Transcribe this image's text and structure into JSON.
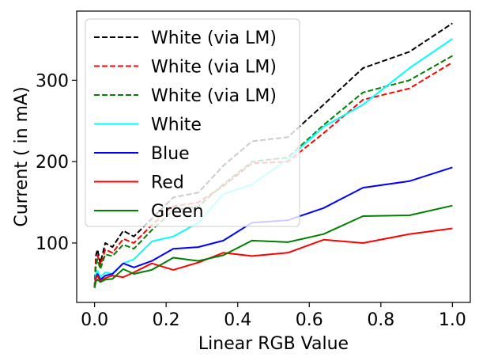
{
  "chart_data": {
    "type": "line",
    "title": "",
    "xlabel": "Linear RGB Value",
    "ylabel": "Current ( in mA)",
    "xlim": [
      -0.05,
      1.05
    ],
    "ylim": [
      27,
      385
    ],
    "x_ticks": [
      0.0,
      0.2,
      0.4,
      0.6,
      0.8,
      1.0
    ],
    "x_tick_labels": [
      "0.0",
      "0.2",
      "0.4",
      "0.6",
      "0.8",
      "1.0"
    ],
    "y_ticks": [
      100,
      200,
      300
    ],
    "y_tick_labels": [
      "100",
      "200",
      "300"
    ],
    "grid": false,
    "legend_position": "upper-left",
    "series": [
      {
        "name": "White (via LM)",
        "color": "#000000",
        "dash": "dashed",
        "x": [
          0.0,
          0.004,
          0.008,
          0.016,
          0.03,
          0.05,
          0.08,
          0.11,
          0.16,
          0.22,
          0.29,
          0.36,
          0.44,
          0.54,
          0.64,
          0.75,
          0.88,
          1.0
        ],
        "y": [
          45,
          85,
          92,
          75,
          100,
          95,
          115,
          108,
          130,
          156,
          162,
          195,
          225,
          230,
          270,
          315,
          335,
          370
        ]
      },
      {
        "name": "White (via LM)",
        "color": "#ff0000",
        "dash": "dashed",
        "x": [
          0.0,
          0.004,
          0.008,
          0.016,
          0.03,
          0.05,
          0.08,
          0.11,
          0.16,
          0.22,
          0.29,
          0.36,
          0.44,
          0.54,
          0.64,
          0.75,
          0.88,
          1.0
        ],
        "y": [
          45,
          78,
          85,
          72,
          92,
          88,
          105,
          100,
          122,
          145,
          150,
          170,
          198,
          200,
          235,
          276,
          290,
          322
        ]
      },
      {
        "name": "White (via LM)",
        "color": "#008000",
        "dash": "dashed",
        "x": [
          0.0,
          0.004,
          0.008,
          0.016,
          0.03,
          0.05,
          0.08,
          0.11,
          0.16,
          0.22,
          0.29,
          0.36,
          0.44,
          0.54,
          0.64,
          0.75,
          0.88,
          1.0
        ],
        "y": [
          45,
          72,
          80,
          68,
          86,
          84,
          98,
          93,
          116,
          140,
          145,
          172,
          200,
          205,
          245,
          285,
          300,
          330
        ]
      },
      {
        "name": "White",
        "color": "#00ffff",
        "dash": "solid",
        "x": [
          0.0,
          0.004,
          0.008,
          0.016,
          0.03,
          0.05,
          0.08,
          0.11,
          0.16,
          0.22,
          0.29,
          0.36,
          0.44,
          0.54,
          0.64,
          0.75,
          0.88,
          1.0
        ],
        "y": [
          45,
          62,
          66,
          58,
          64,
          62,
          75,
          80,
          102,
          108,
          125,
          160,
          172,
          203,
          243,
          270,
          315,
          351
        ]
      },
      {
        "name": "Blue",
        "color": "#0000ff",
        "dash": "solid",
        "x": [
          0.0,
          0.004,
          0.008,
          0.016,
          0.03,
          0.05,
          0.08,
          0.11,
          0.16,
          0.22,
          0.29,
          0.36,
          0.44,
          0.54,
          0.64,
          0.75,
          0.88,
          1.0
        ],
        "y": [
          45,
          58,
          62,
          55,
          60,
          62,
          75,
          70,
          78,
          93,
          95,
          103,
          125,
          128,
          143,
          168,
          176,
          193
        ]
      },
      {
        "name": "Red",
        "color": "#ff0000",
        "dash": "solid",
        "x": [
          0.0,
          0.004,
          0.008,
          0.016,
          0.03,
          0.05,
          0.08,
          0.11,
          0.16,
          0.22,
          0.29,
          0.36,
          0.44,
          0.54,
          0.64,
          0.75,
          0.88,
          1.0
        ],
        "y": [
          45,
          57,
          60,
          53,
          57,
          60,
          58,
          64,
          75,
          67,
          76,
          88,
          84,
          88,
          104,
          100,
          111,
          118
        ]
      },
      {
        "name": "Green",
        "color": "#008000",
        "dash": "solid",
        "x": [
          0.0,
          0.004,
          0.008,
          0.016,
          0.03,
          0.05,
          0.08,
          0.11,
          0.16,
          0.22,
          0.29,
          0.36,
          0.44,
          0.54,
          0.64,
          0.75,
          0.88,
          1.0
        ],
        "y": [
          45,
          53,
          55,
          52,
          55,
          56,
          68,
          62,
          67,
          82,
          78,
          85,
          103,
          101,
          111,
          133,
          134,
          146
        ]
      }
    ]
  }
}
